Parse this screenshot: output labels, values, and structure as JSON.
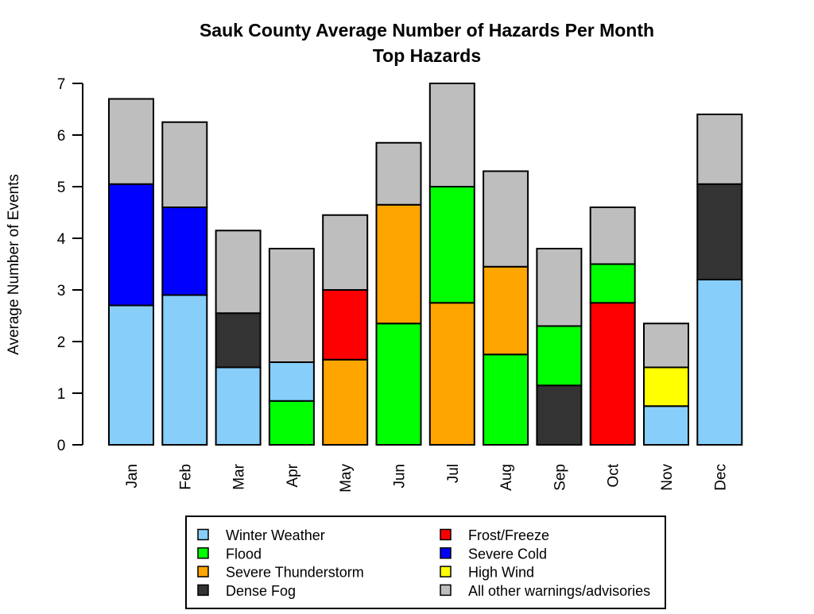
{
  "chart_data": {
    "type": "bar",
    "stacked": true,
    "title": "Sauk County Average Number of Hazards Per Month",
    "subtitle": "Top Hazards",
    "xlabel": "",
    "ylabel": "Average Number of Events",
    "ylim": [
      0,
      7
    ],
    "yticks": [
      "0",
      "1",
      "2",
      "3",
      "4",
      "5",
      "6",
      "7"
    ],
    "grid": false,
    "legend_position": "bottom",
    "categories": [
      "Jan",
      "Feb",
      "Mar",
      "Apr",
      "May",
      "Jun",
      "Jul",
      "Aug",
      "Sep",
      "Oct",
      "Nov",
      "Dec"
    ],
    "series": [
      {
        "key": "winter",
        "name": "Winter Weather",
        "color": "#87CEFA",
        "values": [
          2.7,
          2.9,
          1.5,
          0.75,
          0,
          0,
          0,
          0,
          0,
          0,
          0.75,
          3.2
        ]
      },
      {
        "key": "flood",
        "name": "Flood",
        "color": "#00FF00",
        "values": [
          0,
          0,
          0,
          0.85,
          0,
          2.35,
          2.25,
          1.75,
          1.15,
          0.75,
          0,
          0
        ]
      },
      {
        "key": "thunder",
        "name": "Severe Thunderstorm",
        "color": "#FFA500",
        "values": [
          0,
          0,
          0,
          0,
          1.65,
          2.3,
          2.75,
          1.7,
          0,
          0,
          0,
          0
        ]
      },
      {
        "key": "fog",
        "name": "Dense Fog",
        "color": "#333333",
        "values": [
          0,
          0,
          1.05,
          0,
          0,
          0,
          0,
          0,
          1.15,
          0,
          0,
          1.85
        ]
      },
      {
        "key": "frost",
        "name": "Frost/Freeze",
        "color": "#FF0000",
        "values": [
          0,
          0,
          0,
          0,
          1.35,
          0,
          0,
          0,
          0,
          2.75,
          0,
          0
        ]
      },
      {
        "key": "cold",
        "name": "Severe Cold",
        "color": "#0000FF",
        "values": [
          2.35,
          1.7,
          0,
          0,
          0,
          0,
          0,
          0,
          0,
          0,
          0,
          0
        ]
      },
      {
        "key": "wind",
        "name": "High Wind",
        "color": "#FFFF00",
        "values": [
          0,
          0,
          0,
          0,
          0,
          0,
          0,
          0,
          0,
          0,
          0.75,
          0
        ]
      },
      {
        "key": "other",
        "name": "All other warnings/advisories",
        "color": "#BEBEBE",
        "values": [
          1.65,
          1.65,
          1.6,
          2.2,
          1.45,
          1.2,
          2.0,
          1.85,
          1.5,
          1.1,
          0.85,
          1.35
        ]
      }
    ],
    "stack_order": [
      [
        "winter",
        "cold",
        "other"
      ],
      [
        "winter",
        "cold",
        "other"
      ],
      [
        "winter",
        "fog",
        "other"
      ],
      [
        "flood",
        "winter",
        "other"
      ],
      [
        "thunder",
        "frost",
        "other"
      ],
      [
        "flood",
        "thunder",
        "other"
      ],
      [
        "thunder",
        "flood",
        "other"
      ],
      [
        "flood",
        "thunder",
        "other"
      ],
      [
        "fog",
        "flood",
        "other"
      ],
      [
        "frost",
        "flood",
        "other"
      ],
      [
        "winter",
        "wind",
        "other"
      ],
      [
        "winter",
        "fog",
        "other"
      ]
    ],
    "legend_columns": [
      [
        "winter",
        "flood",
        "thunder",
        "fog"
      ],
      [
        "frost",
        "cold",
        "wind",
        "other"
      ]
    ]
  }
}
